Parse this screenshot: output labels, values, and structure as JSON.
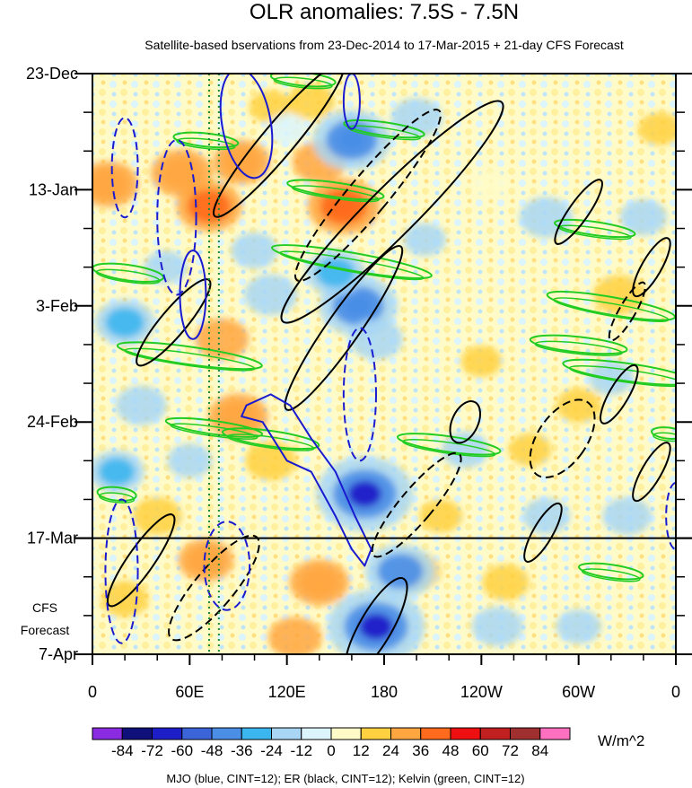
{
  "chart_data": {
    "type": "heatmap",
    "title": "OLR anomalies: 7.5S - 7.5N",
    "subtitle": "Satellite-based bservations from 23-Dec-2014 to 17-Mar-2015 + 21-day CFS Forecast",
    "x_ticks": [
      "0",
      "60E",
      "120E",
      "180",
      "120W",
      "60W",
      "0"
    ],
    "x_tick_values": [
      0,
      60,
      120,
      180,
      240,
      300,
      360
    ],
    "xlim": [
      0,
      360
    ],
    "y_ticks": [
      "23-Dec",
      "13-Jan",
      "3-Feb",
      "24-Feb",
      "17-Mar",
      "7-Apr"
    ],
    "y_tick_days": [
      0,
      21,
      42,
      63,
      84,
      105
    ],
    "ylim_days": [
      0,
      105
    ],
    "y_axis_direction": "time increases downward",
    "forecast_label": [
      "CFS",
      "Forecast"
    ],
    "forecast_start_day": 84,
    "colorbar": {
      "levels": [
        -84,
        -72,
        -60,
        -48,
        -36,
        -24,
        -12,
        0,
        12,
        24,
        36,
        48,
        60,
        72,
        84
      ],
      "tick_labels": [
        "-84",
        "-72",
        "-60",
        "-48",
        "-36",
        "-24",
        "-12",
        "0",
        "12",
        "24",
        "36",
        "48",
        "60",
        "72",
        "84"
      ],
      "colors": [
        "#8a2be2",
        "#10107a",
        "#1e1ec8",
        "#3a64d8",
        "#4a8ee6",
        "#3cb6ee",
        "#a8d6f4",
        "#dcf4fb",
        "#fffbc8",
        "#ffd040",
        "#ffa640",
        "#ff6a1c",
        "#ee1010",
        "#c02020",
        "#a03030",
        "#ff70c0"
      ],
      "units": "W/m^2"
    },
    "footnote": "MJO (blue, CINT=12); ER (black, CINT=12); Kelvin (green, CINT=12)",
    "anomaly_blobs": [
      {
        "lon": 10,
        "day": 20,
        "value": 30
      },
      {
        "lon": 55,
        "day": 18,
        "value": 32
      },
      {
        "lon": 72,
        "day": 24,
        "value": 36
      },
      {
        "lon": 92,
        "day": 16,
        "value": 28
      },
      {
        "lon": 140,
        "day": 16,
        "value": 24
      },
      {
        "lon": 155,
        "day": 24,
        "value": 42
      },
      {
        "lon": 135,
        "day": 5,
        "value": 18
      },
      {
        "lon": 110,
        "day": 6,
        "value": 14
      },
      {
        "lon": 90,
        "day": 62,
        "value": 30
      },
      {
        "lon": 80,
        "day": 48,
        "value": 24
      },
      {
        "lon": 110,
        "day": 70,
        "value": 22
      },
      {
        "lon": 40,
        "day": 80,
        "value": 20
      },
      {
        "lon": 70,
        "day": 88,
        "value": 26
      },
      {
        "lon": 140,
        "day": 92,
        "value": 30
      },
      {
        "lon": 125,
        "day": 102,
        "value": 24
      },
      {
        "lon": 200,
        "day": 90,
        "value": 20
      },
      {
        "lon": 255,
        "day": 92,
        "value": 18
      },
      {
        "lon": 325,
        "day": 40,
        "value": 22
      },
      {
        "lon": 300,
        "day": 60,
        "value": 16
      },
      {
        "lon": 240,
        "day": 52,
        "value": 12
      },
      {
        "lon": 215,
        "day": 80,
        "value": 14
      },
      {
        "lon": 350,
        "day": 10,
        "value": 14
      },
      {
        "lon": 270,
        "day": 68,
        "value": 14
      },
      {
        "lon": 20,
        "day": 95,
        "value": 18
      },
      {
        "lon": 245,
        "day": 20,
        "value": 10
      },
      {
        "lon": 160,
        "day": 12,
        "value": -48
      },
      {
        "lon": 164,
        "day": 42,
        "value": -48
      },
      {
        "lon": 168,
        "day": 76,
        "value": -66
      },
      {
        "lon": 175,
        "day": 100,
        "value": -66
      },
      {
        "lon": 190,
        "day": 90,
        "value": -40
      },
      {
        "lon": 150,
        "day": 36,
        "value": -30
      },
      {
        "lon": 175,
        "day": 48,
        "value": -24
      },
      {
        "lon": 20,
        "day": 45,
        "value": -30
      },
      {
        "lon": 30,
        "day": 60,
        "value": -22
      },
      {
        "lon": 15,
        "day": 72,
        "value": -26
      },
      {
        "lon": 110,
        "day": 40,
        "value": -24
      },
      {
        "lon": 100,
        "day": 32,
        "value": -18
      },
      {
        "lon": 200,
        "day": 8,
        "value": -22
      },
      {
        "lon": 280,
        "day": 26,
        "value": -24
      },
      {
        "lon": 340,
        "day": 26,
        "value": -18
      },
      {
        "lon": 280,
        "day": 80,
        "value": -18
      },
      {
        "lon": 330,
        "day": 80,
        "value": -20
      },
      {
        "lon": 230,
        "day": 68,
        "value": -18
      },
      {
        "lon": 250,
        "day": 100,
        "value": -22
      },
      {
        "lon": 120,
        "day": 10,
        "value": -12
      },
      {
        "lon": 60,
        "day": 70,
        "value": -16
      },
      {
        "lon": 205,
        "day": 30,
        "value": -14
      },
      {
        "lon": 300,
        "day": 100,
        "value": -16
      },
      {
        "lon": 320,
        "day": 55,
        "value": -16
      },
      {
        "lon": 45,
        "day": 35,
        "value": -14
      }
    ],
    "mjo_contours": [
      {
        "lon": 20,
        "day": 17,
        "dlon": 8,
        "dday": 9,
        "angle": 0,
        "dashed": true
      },
      {
        "lon": 62,
        "day": 40,
        "dlon": 8,
        "dday": 8,
        "angle": 0,
        "dashed": false
      },
      {
        "lon": 95,
        "day": 9,
        "dlon": 15,
        "dday": 10,
        "angle": -10,
        "dashed": false
      },
      {
        "lon": 160,
        "day": 5,
        "dlon": 5,
        "dday": 5,
        "angle": 0,
        "dashed": false
      },
      {
        "lon": 165,
        "day": 58,
        "dlon": 10,
        "dday": 12,
        "angle": 0,
        "dashed": true
      },
      {
        "lon": 52,
        "day": 26,
        "dlon": 12,
        "dday": 14,
        "angle": 0,
        "dashed": true
      },
      {
        "lon": 18,
        "day": 90,
        "dlon": 10,
        "dday": 13,
        "angle": 0,
        "dashed": true
      },
      {
        "lon": 83,
        "day": 89,
        "dlon": 14,
        "dday": 8,
        "angle": 0,
        "dashed": true
      },
      {
        "lon": 360,
        "day": 80,
        "dlon": 6,
        "dday": 6,
        "angle": 0,
        "dashed": true
      }
    ],
    "er_contours": [
      {
        "lon": 185,
        "day": 25,
        "dlon": 15,
        "dday": 28,
        "angle": 45,
        "dashed": false
      },
      {
        "lon": 170,
        "day": 22,
        "dlon": 12,
        "dday": 20,
        "angle": 40,
        "dashed": true
      },
      {
        "lon": 115,
        "day": 12,
        "dlon": 10,
        "dday": 18,
        "angle": 40,
        "dashed": false
      },
      {
        "lon": 155,
        "day": 46,
        "dlon": 10,
        "dday": 18,
        "angle": 35,
        "dashed": false
      },
      {
        "lon": 200,
        "day": 78,
        "dlon": 10,
        "dday": 12,
        "angle": 40,
        "dashed": true
      },
      {
        "lon": 50,
        "day": 45,
        "dlon": 8,
        "dday": 10,
        "angle": 40,
        "dashed": false
      },
      {
        "lon": 30,
        "day": 88,
        "dlon": 8,
        "dday": 10,
        "angle": 35,
        "dashed": false
      },
      {
        "lon": 75,
        "day": 93,
        "dlon": 12,
        "dday": 12,
        "angle": 40,
        "dashed": true
      },
      {
        "lon": 175,
        "day": 100,
        "dlon": 10,
        "dday": 10,
        "angle": 30,
        "dashed": false
      },
      {
        "lon": 290,
        "day": 66,
        "dlon": 15,
        "dday": 8,
        "angle": 35,
        "dashed": true
      },
      {
        "lon": 300,
        "day": 25,
        "dlon": 6,
        "dday": 7,
        "angle": 35,
        "dashed": false
      },
      {
        "lon": 325,
        "day": 58,
        "dlon": 6,
        "dday": 6,
        "angle": 30,
        "dashed": false
      },
      {
        "lon": 345,
        "day": 72,
        "dlon": 6,
        "dday": 6,
        "angle": 30,
        "dashed": false
      },
      {
        "lon": 278,
        "day": 83,
        "dlon": 6,
        "dday": 6,
        "angle": 30,
        "dashed": false
      },
      {
        "lon": 230,
        "day": 63,
        "dlon": 8,
        "dday": 4,
        "angle": 25,
        "dashed": false
      },
      {
        "lon": 345,
        "day": 35,
        "dlon": 6,
        "dday": 6,
        "angle": 30,
        "dashed": false
      },
      {
        "lon": 330,
        "day": 43,
        "dlon": 5,
        "dday": 6,
        "angle": 30,
        "dashed": true
      }
    ],
    "kelvin_contours": [
      {
        "lon": 22,
        "day": 36,
        "dlon": 22,
        "dday": 1.4,
        "angle": 8
      },
      {
        "lon": 60,
        "day": 51,
        "dlon": 45,
        "dday": 1.6,
        "angle": 8
      },
      {
        "lon": 110,
        "day": 66,
        "dlon": 30,
        "dday": 1.4,
        "angle": 8
      },
      {
        "lon": 160,
        "day": 34,
        "dlon": 50,
        "dday": 1.6,
        "angle": 10
      },
      {
        "lon": 220,
        "day": 67,
        "dlon": 32,
        "dday": 1.4,
        "angle": 8
      },
      {
        "lon": 320,
        "day": 42,
        "dlon": 40,
        "dday": 1.6,
        "angle": 10
      },
      {
        "lon": 330,
        "day": 54,
        "dlon": 40,
        "dday": 1.6,
        "angle": 8
      },
      {
        "lon": 300,
        "day": 49,
        "dlon": 30,
        "dday": 1.4,
        "angle": 6
      },
      {
        "lon": 150,
        "day": 21,
        "dlon": 30,
        "dday": 1.3,
        "angle": 8
      },
      {
        "lon": 130,
        "day": 1,
        "dlon": 20,
        "dday": 1.2,
        "angle": 6
      },
      {
        "lon": 70,
        "day": 12,
        "dlon": 20,
        "dday": 1.2,
        "angle": 6
      },
      {
        "lon": 180,
        "day": 10,
        "dlon": 25,
        "dday": 1.2,
        "angle": 8
      },
      {
        "lon": 320,
        "day": 90,
        "dlon": 20,
        "dday": 1.2,
        "angle": 8
      },
      {
        "lon": 15,
        "day": 76,
        "dlon": 12,
        "dday": 1.2,
        "angle": 6
      },
      {
        "lon": 75,
        "day": 64,
        "dlon": 30,
        "dday": 1.2,
        "angle": 8
      },
      {
        "lon": 310,
        "day": 28,
        "dlon": 25,
        "dday": 1.2,
        "angle": 8
      },
      {
        "lon": 355,
        "day": 65,
        "dlon": 10,
        "dday": 1.0,
        "angle": 6
      }
    ],
    "mjo_long_contour": [
      [
        92,
        62
      ],
      [
        105,
        63
      ],
      [
        120,
        70
      ],
      [
        135,
        72
      ],
      [
        150,
        80
      ],
      [
        160,
        86
      ],
      [
        168,
        89
      ],
      [
        172,
        86
      ],
      [
        162,
        80
      ],
      [
        150,
        72
      ],
      [
        135,
        66
      ],
      [
        122,
        60
      ],
      [
        110,
        58
      ],
      [
        95,
        60
      ]
    ],
    "dotted_lines_lon": [
      72,
      78
    ],
    "forecast_line_day": 84
  }
}
